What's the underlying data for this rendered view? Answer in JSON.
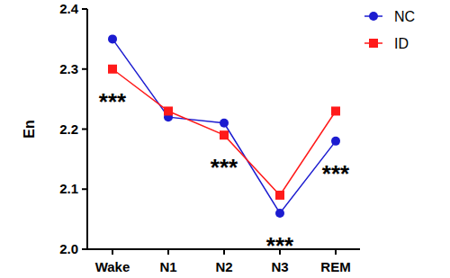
{
  "chart_data": {
    "type": "line",
    "y_label": "En",
    "categories": [
      "Wake",
      "N1",
      "N2",
      "N3",
      "REM"
    ],
    "series": [
      {
        "name": "NC",
        "color": "#1c1cd0",
        "marker": "circle",
        "values": [
          2.35,
          2.22,
          2.21,
          2.06,
          2.18
        ]
      },
      {
        "name": "ID",
        "color": "#ff1a1a",
        "marker": "square",
        "values": [
          2.3,
          2.23,
          2.19,
          2.09,
          2.23
        ]
      }
    ],
    "ylim": [
      2.0,
      2.4
    ],
    "yticks": [
      {
        "value": 2.0,
        "label": "2.0"
      },
      2.1,
      2.2,
      2.3,
      2.4
    ],
    "grid": false,
    "legend": "right",
    "annotations": [
      {
        "text": "***",
        "x": "Wake"
      },
      {
        "text": "***",
        "x": "N2"
      },
      {
        "text": "***",
        "x": "N3"
      },
      {
        "text": "***",
        "x": "REM"
      }
    ]
  }
}
